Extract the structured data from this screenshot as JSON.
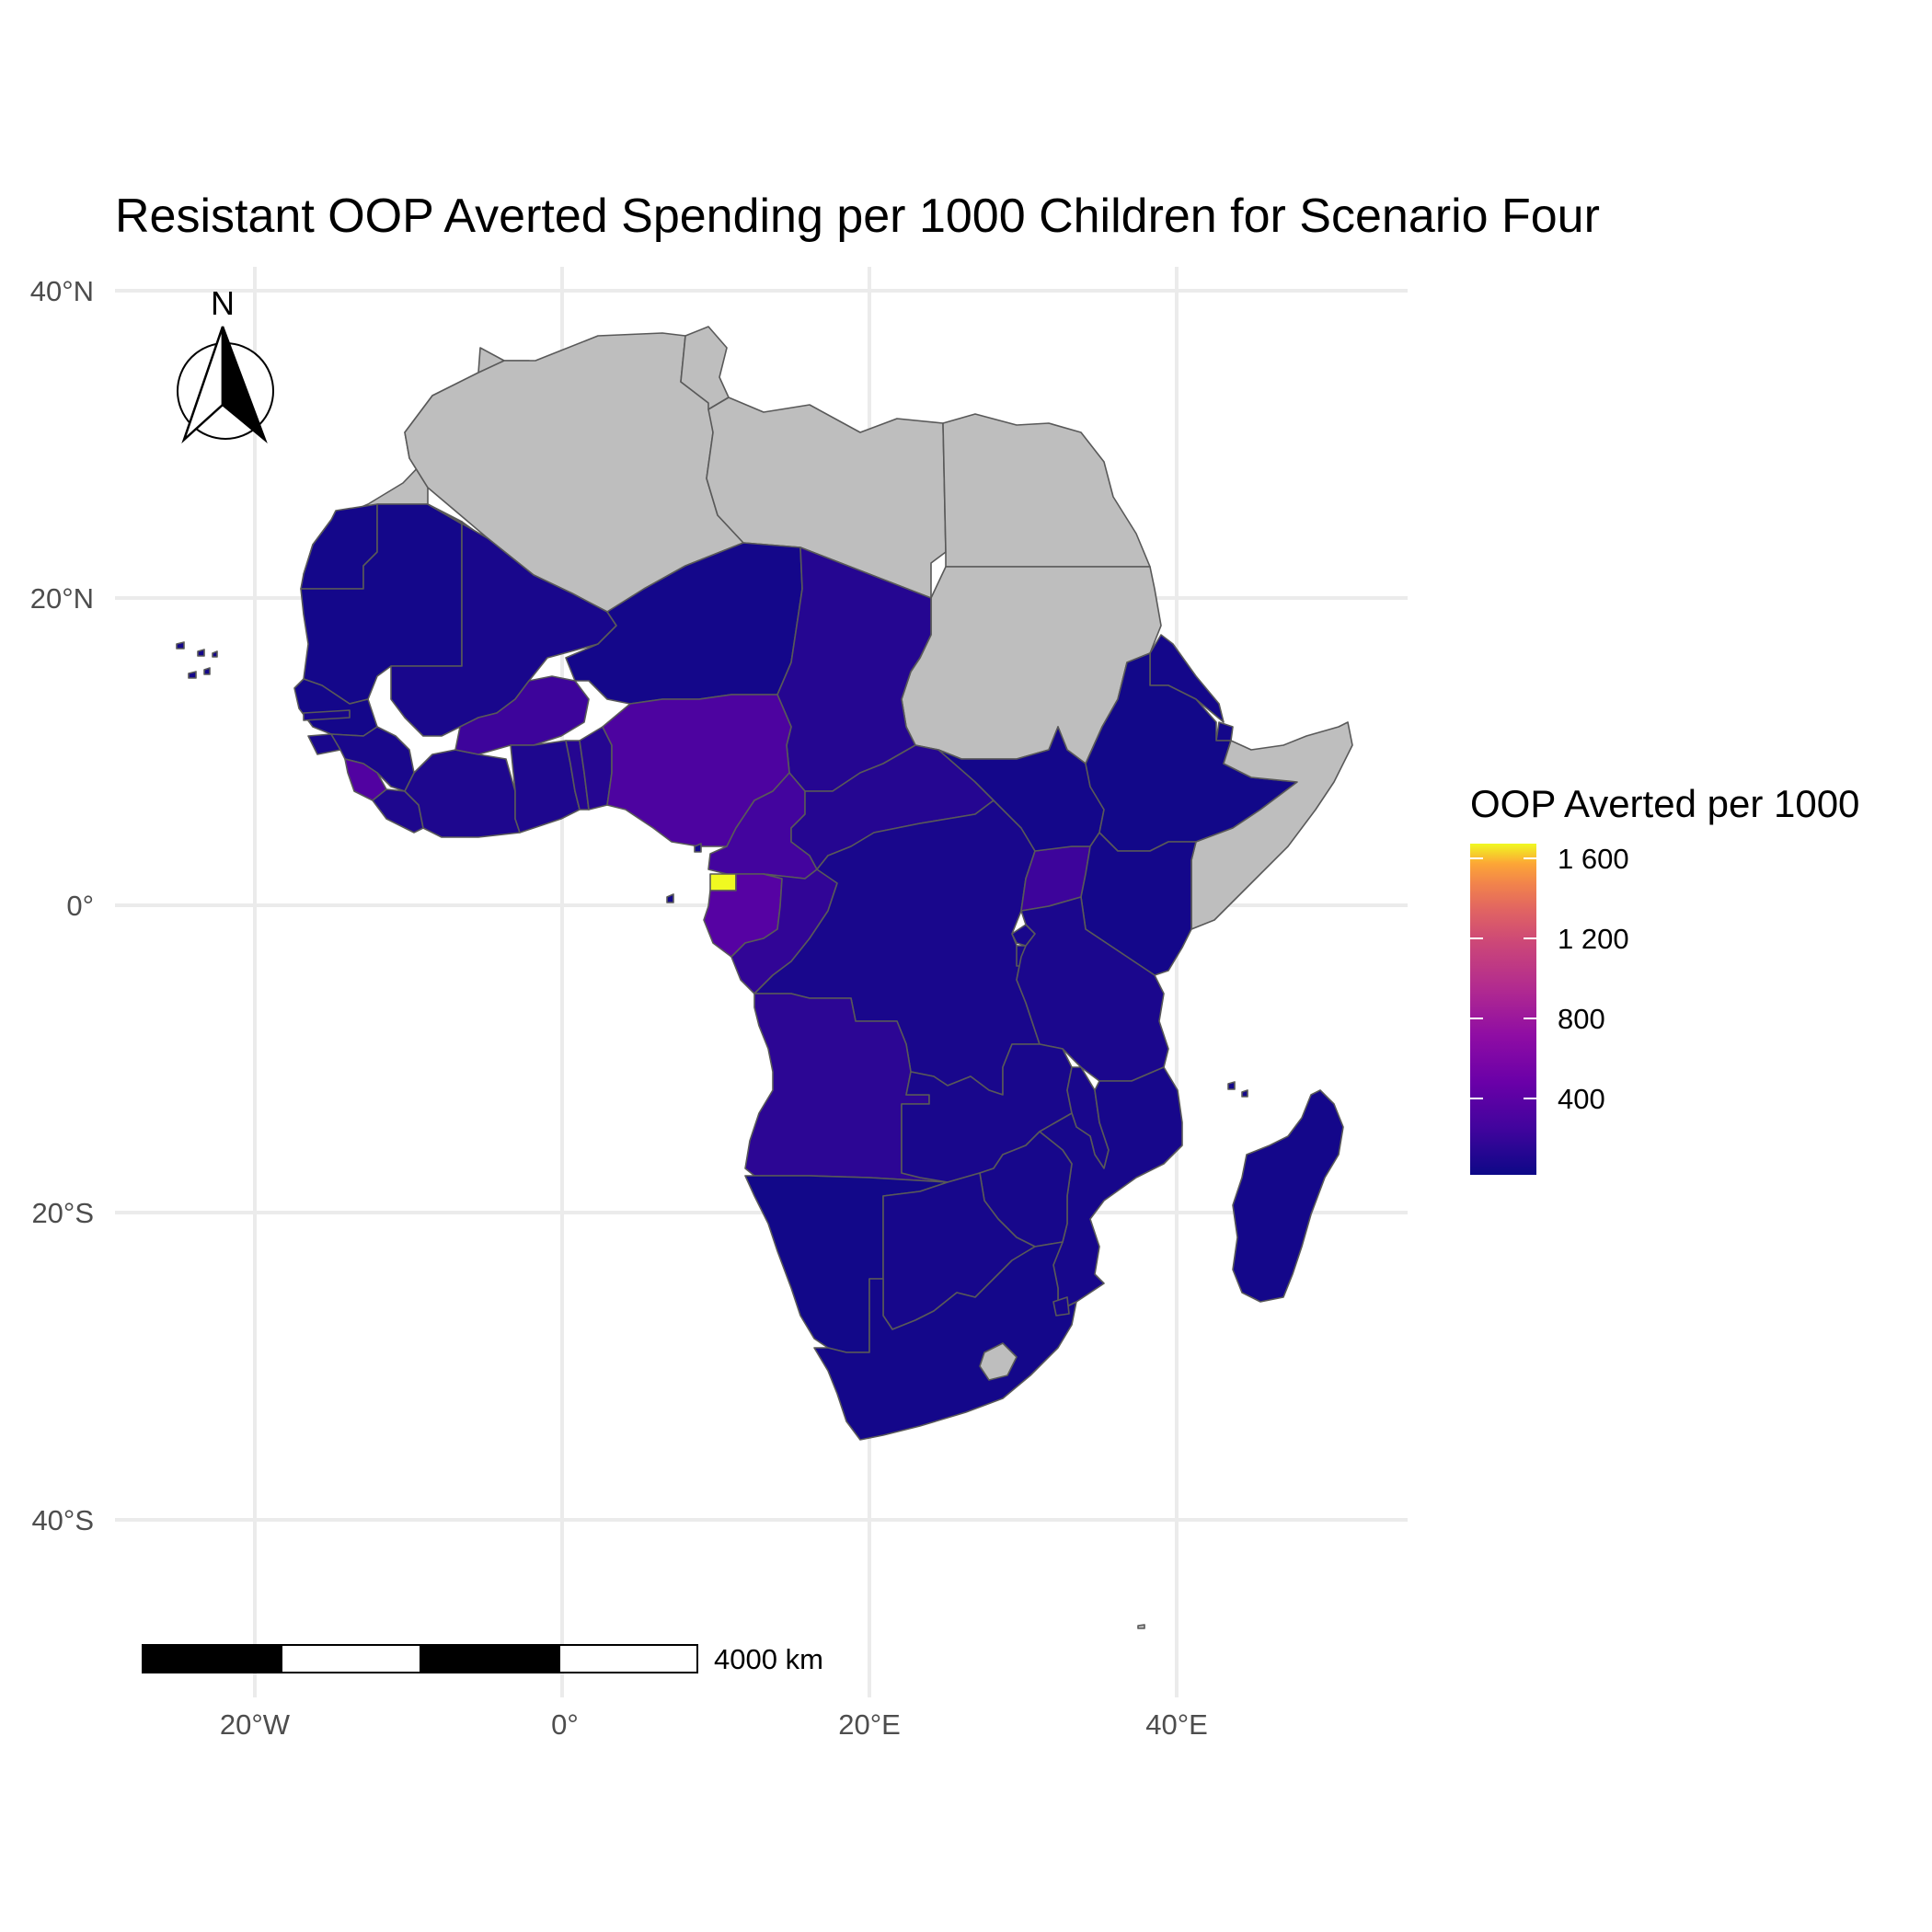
{
  "title": "Resistant OOP Averted Spending per 1000 Children for Scenario Four",
  "axes": {
    "y_ticks": [
      "40°N",
      "20°N",
      "0°",
      "20°S",
      "40°S"
    ],
    "x_ticks": [
      "20°W",
      "0°",
      "20°E",
      "40°E"
    ]
  },
  "north_arrow": {
    "label": "N"
  },
  "scale_bar": {
    "label": "4000 km"
  },
  "legend": {
    "title": "OOP Averted per 1000",
    "labels": [
      "1 600",
      "1 200",
      "800",
      "400"
    ]
  },
  "colors": {
    "no_data": "#bebebe",
    "low": "#0d0887",
    "mid": "#6a00a8",
    "high_mid": "#b12a90",
    "high": "#e16462",
    "upper": "#fca636",
    "max": "#f0f921",
    "border": "#595959"
  },
  "chart_data": {
    "type": "choropleth",
    "region": "Africa",
    "x_range_deg": [
      -27,
      52
    ],
    "y_range_deg": [
      -48,
      40
    ],
    "color_scale": {
      "min": 100,
      "max": 1650,
      "palette": "plasma"
    },
    "values": {
      "Mauritania": 130,
      "Western Sahara": 130,
      "Mali": 150,
      "Niger": 130,
      "Chad": 200,
      "Senegal": 130,
      "Gambia": 150,
      "Guinea-Bissau": 150,
      "Guinea": 150,
      "Sierra Leone": 400,
      "Liberia": 170,
      "Cote d'Ivoire": 170,
      "Burkina Faso": 300,
      "Ghana": 170,
      "Togo": 200,
      "Benin": 200,
      "Nigeria": 380,
      "Cameroon": 330,
      "Central African Republic": 200,
      "Equatorial Guinea": 1650,
      "Gabon": 430,
      "Republic of Congo": 250,
      "DR Congo": 150,
      "Uganda": 300,
      "Kenya": 130,
      "Ethiopia": 120,
      "South Sudan": 130,
      "Tanzania": 160,
      "Rwanda": 150,
      "Burundi": 150,
      "Angola": 230,
      "Zambia": 150,
      "Malawi": 150,
      "Mozambique": 140,
      "Zimbabwe": 140,
      "Namibia": 120,
      "Botswana": 140,
      "South Africa": 130,
      "Eswatini": 140,
      "Madagascar": 130,
      "Eritrea": 130,
      "Djibouti": 130,
      "Comoros": 130,
      "Cabo Verde": 130,
      "Sao Tome and Principe": 130,
      "Morocco": null,
      "Algeria": null,
      "Tunisia": null,
      "Libya": null,
      "Egypt": null,
      "Sudan": null,
      "Somalia": null,
      "Lesotho": null
    }
  }
}
